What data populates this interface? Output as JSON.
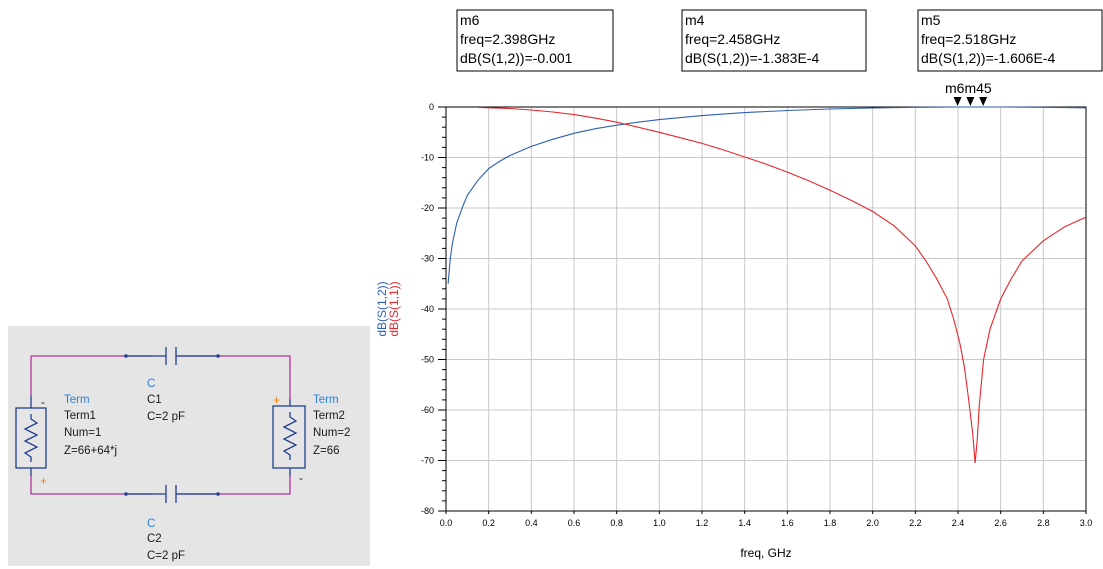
{
  "schematic": {
    "colors": {
      "background": "#e5e5e5",
      "wire": "#b0339b",
      "component": "#1f3f8f",
      "type_label": "#2f7fd6",
      "plus": "#ff7a00"
    },
    "term1": {
      "type": "Term",
      "name": "Term1",
      "num": "Num=1",
      "z": "Z=66+64*j",
      "minus": "-",
      "plus": "+"
    },
    "term2": {
      "type": "Term",
      "name": "Term2",
      "num": "Num=2",
      "z": "Z=66",
      "minus": "-",
      "plus": "+"
    },
    "c1": {
      "type": "C",
      "name": "C1",
      "value": "C=2 pF"
    },
    "c2": {
      "type": "C",
      "name": "C2",
      "value": "C=2 pF"
    }
  },
  "chart_data": {
    "type": "line",
    "xlabel": "freq, GHz",
    "ylabels": [
      {
        "text": "dB(S(1,2))",
        "color": "#2e5fb3"
      },
      {
        "text": "dB(S(1,1))",
        "color": "#e8262c"
      }
    ],
    "xlim": [
      0.0,
      3.0
    ],
    "ylim": [
      -80,
      0
    ],
    "xticks": [
      "0.0",
      "0.2",
      "0.4",
      "0.6",
      "0.8",
      "1.0",
      "1.2",
      "1.4",
      "1.6",
      "1.8",
      "2.0",
      "2.2",
      "2.4",
      "2.6",
      "2.8",
      "3.0"
    ],
    "yticks": [
      "0",
      "-10",
      "-20",
      "-30",
      "-40",
      "-50",
      "-60",
      "-70",
      "-80"
    ],
    "grid": true,
    "series": [
      {
        "name": "dB(S(1,2))",
        "color": "#2e5fb3",
        "x": [
          0.01,
          0.02,
          0.03,
          0.05,
          0.08,
          0.1,
          0.15,
          0.2,
          0.25,
          0.3,
          0.4,
          0.5,
          0.6,
          0.7,
          0.8,
          0.9,
          1.0,
          1.2,
          1.4,
          1.6,
          1.8,
          2.0,
          2.2,
          2.4,
          2.6,
          2.8,
          3.0
        ],
        "y": [
          -35,
          -30,
          -27,
          -23,
          -19.5,
          -17.5,
          -14.5,
          -12.2,
          -10.8,
          -9.6,
          -7.8,
          -6.4,
          -5.2,
          -4.3,
          -3.6,
          -3.0,
          -2.5,
          -1.7,
          -1.1,
          -0.7,
          -0.4,
          -0.2,
          -0.06,
          -0.001,
          -0.001,
          -0.05,
          -0.15
        ]
      },
      {
        "name": "dB(S(1,1))",
        "color": "#e8262c",
        "x": [
          0.15,
          0.3,
          0.4,
          0.5,
          0.6,
          0.7,
          0.8,
          0.9,
          1.0,
          1.1,
          1.2,
          1.3,
          1.4,
          1.5,
          1.6,
          1.7,
          1.8,
          1.9,
          2.0,
          2.1,
          2.2,
          2.25,
          2.3,
          2.35,
          2.38,
          2.41,
          2.43,
          2.45,
          2.47,
          2.48,
          2.49,
          2.5,
          2.52,
          2.55,
          2.6,
          2.65,
          2.7,
          2.8,
          2.9,
          3.0
        ],
        "y": [
          -0.1,
          -0.3,
          -0.6,
          -1.0,
          -1.5,
          -2.2,
          -3.0,
          -4.0,
          -5.0,
          -6.1,
          -7.2,
          -8.5,
          -9.9,
          -11.3,
          -12.9,
          -14.6,
          -16.5,
          -18.5,
          -20.7,
          -23.5,
          -27.5,
          -30.5,
          -34,
          -38,
          -42,
          -47,
          -51.5,
          -58,
          -65,
          -70.5,
          -66,
          -59,
          -50,
          -44,
          -38,
          -34,
          -30.5,
          -26.5,
          -23.7,
          -21.8
        ]
      }
    ],
    "markers": [
      {
        "label": "m6",
        "freq": "freq=2.398GHz",
        "value": "dB(S(1,2))=-0.001",
        "x": 2.398,
        "y": 0
      },
      {
        "label": "m4",
        "freq": "freq=2.458GHz",
        "value": "dB(S(1,2))=-1.383E-4",
        "x": 2.458,
        "y": 0
      },
      {
        "label": "m5",
        "freq": "freq=2.518GHz",
        "value": "dB(S(1,2))=-1.606E-4",
        "x": 2.518,
        "y": 0
      }
    ],
    "marker_tag": "m6m45"
  }
}
